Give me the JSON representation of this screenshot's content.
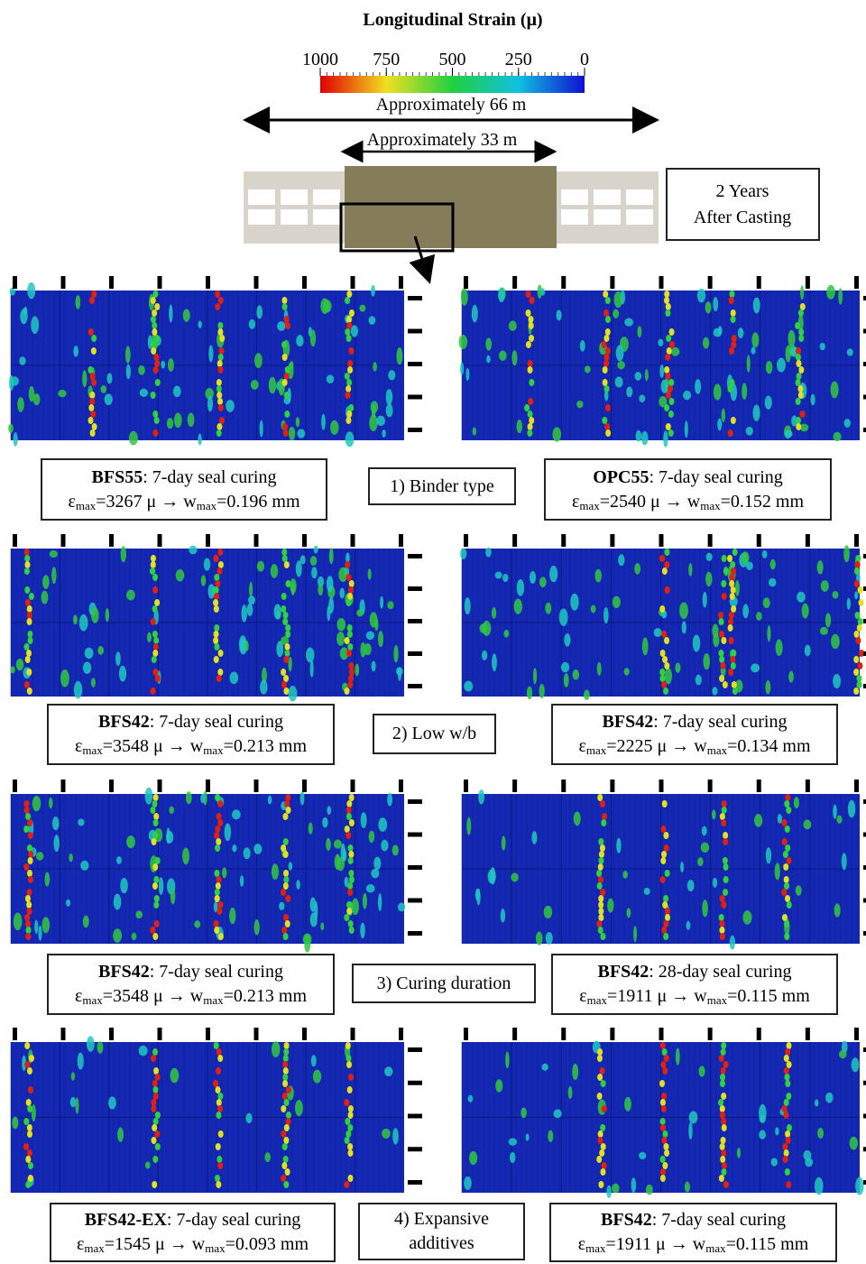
{
  "title": "Longitudinal Strain (μ)",
  "colorbar": {
    "ticks": [
      1000,
      750,
      500,
      250,
      0
    ],
    "lim": [
      1000,
      0
    ]
  },
  "span_long": "Approximately 66 m",
  "span_short": "Approximately 33 m",
  "age_label": [
    "2 Years",
    "After Casting"
  ],
  "caption_terms": {
    "strain_symbol": "ε",
    "subscript": "max",
    "equals": "=",
    "strain_unit": "μ",
    "arrow": "→",
    "width_symbol": "w",
    "width_unit": "mm"
  },
  "groups": [
    {
      "label": [
        "1) Binder type"
      ],
      "panels": [
        {
          "name": "BFS55",
          "curing": ": 7-day seal curing",
          "strain_max": 3267,
          "crack_width": 0.196
        },
        {
          "name": "OPC55",
          "curing": ": 7-day seal curing",
          "strain_max": 2540,
          "crack_width": 0.152
        }
      ]
    },
    {
      "label": [
        "2) Low w/b"
      ],
      "panels": [
        {
          "name": "BFS42",
          "curing": ": 7-day seal curing",
          "strain_max": 3548,
          "crack_width": 0.213
        },
        {
          "name": "BFS42",
          "curing": ": 7-day seal curing",
          "strain_max": 2225,
          "crack_width": 0.134
        }
      ]
    },
    {
      "label": [
        "3) Curing duration"
      ],
      "panels": [
        {
          "name": "BFS42",
          "curing": ": 7-day seal curing",
          "strain_max": 3548,
          "crack_width": 0.213
        },
        {
          "name": "BFS42",
          "curing": ": 28-day seal curing",
          "strain_max": 1911,
          "crack_width": 0.115
        }
      ]
    },
    {
      "label": [
        "4) Expansive",
        "additives"
      ],
      "panels": [
        {
          "name": "BFS42-EX",
          "curing": ": 7-day seal curing",
          "strain_max": 1545,
          "crack_width": 0.093
        },
        {
          "name": "BFS42",
          "curing": ": 7-day seal curing",
          "strain_max": 1911,
          "crack_width": 0.115
        }
      ]
    }
  ]
}
